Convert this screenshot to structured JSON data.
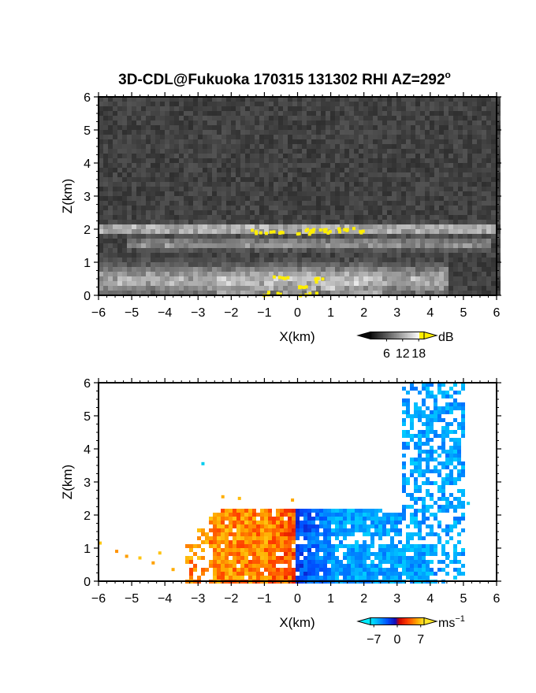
{
  "title_prefix": "3D-CDL@Fukuoka 170315 131302 RHI AZ=292",
  "title_degree": "o",
  "chart_data": [
    {
      "type": "heatmap",
      "name": "backscatter",
      "xlabel": "X(km)",
      "ylabel": "Z(km)",
      "xlim": [
        -6,
        6
      ],
      "ylim": [
        0,
        6
      ],
      "xticks": [
        "−6",
        "−5",
        "−4",
        "−3",
        "−2",
        "−1",
        "0",
        "1",
        "2",
        "3",
        "4",
        "5",
        "6"
      ],
      "yticks": [
        "0",
        "1",
        "2",
        "3",
        "4",
        "5",
        "6"
      ],
      "colorbar": {
        "unit": "dB",
        "ticks": [
          "6",
          "12",
          "18"
        ],
        "range": [
          0,
          20
        ]
      },
      "layers": [
        {
          "x0": -6,
          "x1": 6,
          "zc": 2.0,
          "zw": 0.12,
          "level": 0.75
        },
        {
          "x0": -5.2,
          "x1": 5.8,
          "zc": 1.55,
          "zw": 0.15,
          "level": 0.45
        },
        {
          "x0": -6,
          "x1": 4.5,
          "zc": 0.45,
          "zw": 0.4,
          "level": 0.55
        }
      ],
      "yellow_cells": [
        [
          0.5,
          2.0
        ],
        [
          0.9,
          2.0
        ],
        [
          1.3,
          2.0
        ],
        [
          1.7,
          2.0
        ],
        [
          0.2,
          1.95
        ],
        [
          -0.6,
          2.0
        ],
        [
          -1.2,
          1.95
        ],
        [
          -0.5,
          0.6
        ],
        [
          0.5,
          0.5
        ],
        [
          0.2,
          0.35
        ],
        [
          -0.8,
          0.1
        ],
        [
          0.3,
          0.05
        ]
      ]
    },
    {
      "type": "heatmap",
      "name": "doppler_velocity",
      "xlabel": "X(km)",
      "ylabel": "Z(km)",
      "xlim": [
        -6,
        6
      ],
      "ylim": [
        0,
        6
      ],
      "xticks": [
        "−6",
        "−5",
        "−4",
        "−3",
        "−2",
        "−1",
        "0",
        "1",
        "2",
        "3",
        "4",
        "5",
        "6"
      ],
      "yticks": [
        "0",
        "1",
        "2",
        "3",
        "4",
        "5",
        "6"
      ],
      "colorbar": {
        "unit": "ms",
        "unit_exp": "−1",
        "ticks": [
          "−7",
          "0",
          "7"
        ],
        "range": [
          -8,
          8
        ]
      },
      "regions": {
        "warm": {
          "x0": -3.4,
          "x1": 0.0,
          "z1": 2.2,
          "value": 7
        },
        "cold": {
          "x0": 0.0,
          "x1": 5.0,
          "z1": 2.15,
          "value": -7
        },
        "sparse": [
          [
            -5.5,
            0.95
          ],
          [
            -5.2,
            0.8
          ],
          [
            -4.8,
            0.75
          ],
          [
            -4.2,
            0.9
          ],
          [
            -4.4,
            0.6
          ],
          [
            -3.8,
            0.4
          ],
          [
            -2.9,
            3.6
          ],
          [
            -2.3,
            2.6
          ],
          [
            -1.8,
            2.55
          ],
          [
            -0.2,
            2.5
          ],
          [
            -6.0,
            1.2
          ],
          [
            5.1,
            2.4
          ],
          [
            4.6,
            1.6
          ],
          [
            4.2,
            1.45
          ],
          [
            4.8,
            0.3
          ],
          [
            4.5,
            0.8
          ]
        ]
      }
    }
  ]
}
